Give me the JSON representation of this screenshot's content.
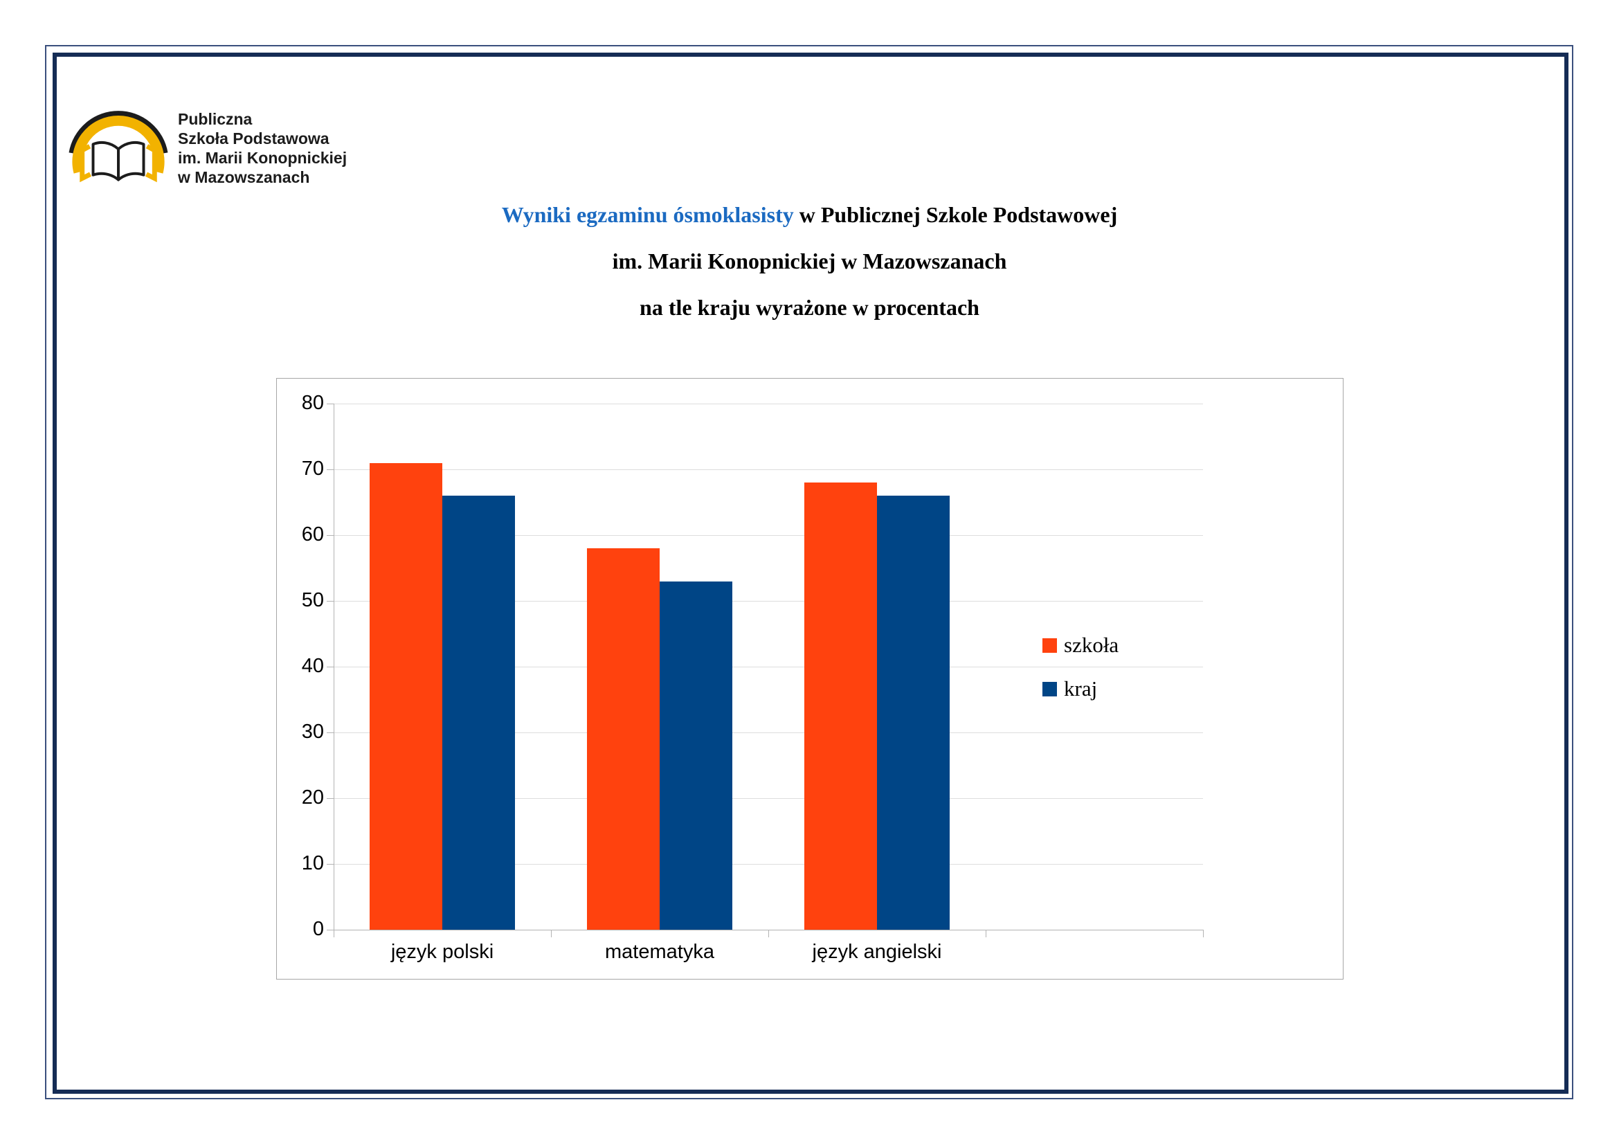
{
  "page": {
    "background": "#ffffff",
    "border_color": "#152c55"
  },
  "logo": {
    "lines": [
      "Publiczna",
      "Szkoła Podstawowa",
      "im. Marii Konopnickiej",
      "w Mazowszanach"
    ],
    "emblem_yellow": "#f2b200",
    "emblem_black": "#1c1c1c"
  },
  "title": {
    "line1_highlight": "Wyniki egzaminu ósmoklasisty",
    "line1_rest": " w Publicznej Szkole Podstawowej",
    "line2": "im. Marii Konopnickiej w Mazowszanach",
    "line3": "na tle kraju wyrażone w procentach",
    "highlight_color": "#1b6ac1"
  },
  "chart_data": {
    "type": "bar",
    "title": "",
    "xlabel": "",
    "ylabel": "",
    "categories": [
      "język polski",
      "matematyka",
      "język angielski"
    ],
    "series": [
      {
        "name": "szkoła",
        "color": "#ff420e",
        "values": [
          71,
          58,
          68
        ]
      },
      {
        "name": "kraj",
        "color": "#004586",
        "values": [
          66,
          53,
          66
        ]
      }
    ],
    "ylim": [
      0,
      80
    ],
    "ytick_step": 10,
    "grid": true,
    "legend_position": "inside-right",
    "frame_border_color": "#a6a6a6",
    "gridline_color": "#dddddd",
    "axis_color": "#b3b3b3"
  }
}
